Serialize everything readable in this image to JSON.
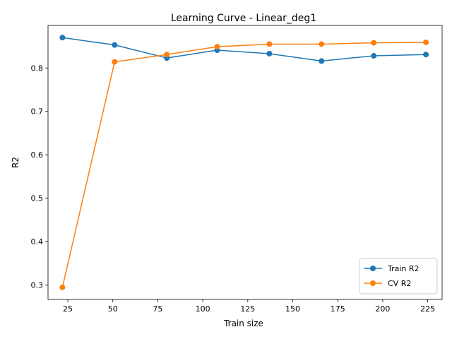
{
  "chart_data": {
    "type": "line",
    "title": "Learning Curve - Linear_deg1",
    "xlabel": "Train size",
    "ylabel": "R2",
    "xlim": [
      14,
      233
    ],
    "ylim": [
      0.267,
      0.898
    ],
    "xticks": [
      25,
      50,
      75,
      100,
      125,
      150,
      175,
      200,
      225
    ],
    "yticks": [
      0.3,
      0.4,
      0.5,
      0.6,
      0.7,
      0.8
    ],
    "x": [
      22,
      51,
      80,
      108,
      137,
      166,
      195,
      224
    ],
    "grid": false,
    "legend": "bottom-right",
    "series": [
      {
        "name": "Train R2",
        "color": "#1f77b4",
        "values": [
          0.87,
          0.853,
          0.823,
          0.841,
          0.833,
          0.816,
          0.828,
          0.831
        ]
      },
      {
        "name": "CV R2",
        "color": "#ff7f0e",
        "values": [
          0.295,
          0.814,
          0.831,
          0.849,
          0.855,
          0.855,
          0.858,
          0.859
        ]
      }
    ]
  }
}
